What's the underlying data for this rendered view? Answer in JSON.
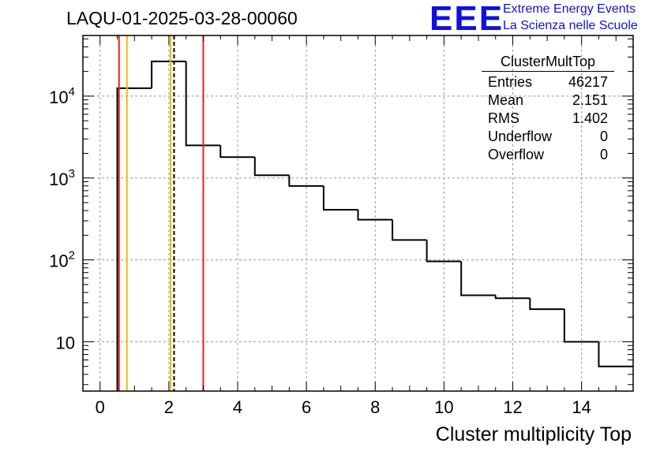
{
  "title": "LAQU-01-2025-03-28-00060",
  "logo": {
    "mark": "EEE",
    "line1": "Extreme Energy Events",
    "line2": "La Scienza nelle Scuole"
  },
  "stats": {
    "name": "ClusterMultTop",
    "rows": [
      {
        "label": "Entries",
        "value": "46217"
      },
      {
        "label": "Mean",
        "value": "2.151"
      },
      {
        "label": "RMS",
        "value": "1.402"
      },
      {
        "label": "Underflow",
        "value": "0"
      },
      {
        "label": "Overflow",
        "value": "0"
      }
    ]
  },
  "chart_data": {
    "type": "histogram",
    "scale": "log",
    "xlabel": "Cluster multiplicity Top",
    "ylabel": "",
    "xlim": [
      -0.5,
      15.5
    ],
    "ylim": [
      2.5,
      55000
    ],
    "grid": true,
    "bin_edges": [
      0.5,
      1.5,
      2.5,
      3.5,
      4.5,
      5.5,
      6.5,
      7.5,
      8.5,
      9.5,
      10.5,
      11.5,
      12.5,
      13.5,
      14.5,
      15.5
    ],
    "values": [
      12500,
      26500,
      2500,
      1800,
      1080,
      800,
      410,
      310,
      175,
      96,
      37,
      34,
      25,
      10,
      5
    ],
    "x_ticks": [
      0,
      2,
      4,
      6,
      8,
      10,
      12,
      14
    ],
    "x_tick_labels": [
      "0",
      "2",
      "4",
      "6",
      "8",
      "10",
      "12",
      "14"
    ],
    "y_ticks": [
      10,
      100,
      1000,
      10000
    ],
    "y_tick_labels": [
      {
        "base": "10",
        "exp": ""
      },
      {
        "base": "10",
        "exp": "2"
      },
      {
        "base": "10",
        "exp": "3"
      },
      {
        "base": "10",
        "exp": "4"
      }
    ],
    "vlines": [
      {
        "x": 0.55,
        "color": "#e8201c",
        "style": "solid"
      },
      {
        "x": 0.78,
        "color": "#f5b800",
        "style": "solid"
      },
      {
        "x": 2.05,
        "color": "#f5b800",
        "style": "solid"
      },
      {
        "x": 2.151,
        "color": "#000000",
        "style": "dashed"
      },
      {
        "x": 3.0,
        "color": "#e8201c",
        "style": "solid"
      }
    ]
  }
}
